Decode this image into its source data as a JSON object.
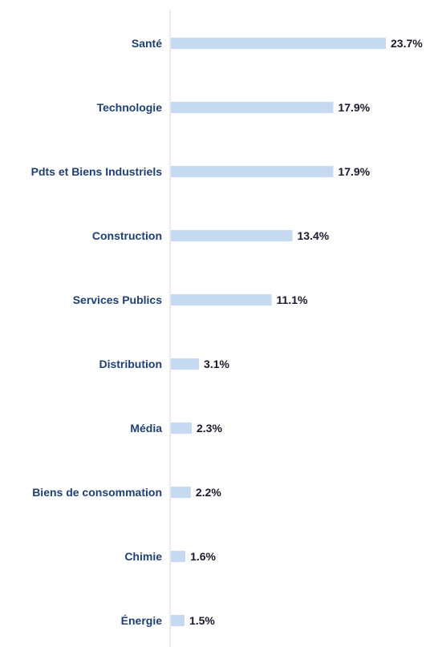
{
  "chart_data": {
    "type": "bar",
    "orientation": "horizontal",
    "title": "",
    "xlabel": "",
    "ylabel": "",
    "categories": [
      "Santé",
      "Technologie",
      "Pdts et Biens Industriels",
      "Construction",
      "Services Publics",
      "Distribution",
      "Média",
      "Biens de consommation",
      "Chimie",
      "Énergie"
    ],
    "values": [
      23.7,
      17.9,
      17.9,
      13.4,
      11.1,
      3.1,
      2.3,
      2.2,
      1.6,
      1.5
    ],
    "value_labels": [
      "23.7%",
      "17.9%",
      "17.9%",
      "13.4%",
      "11.1%",
      "3.1%",
      "2.3%",
      "2.2%",
      "1.6%",
      "1.5%"
    ],
    "xlim": [
      0,
      23.7
    ],
    "grid": false,
    "legend": "none",
    "colors": {
      "bar": "#c5d9f0",
      "category_label": "#1f3f77",
      "value_label": "#1a1a2e",
      "axis": "#d9d9d9"
    }
  }
}
